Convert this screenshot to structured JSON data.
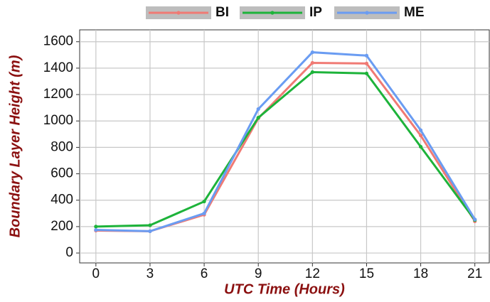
{
  "chart_data": {
    "type": "line",
    "x_label": "UTC Time (Hours)",
    "y_label": "Boundary Layer Height (m)",
    "x": [
      0,
      3,
      6,
      9,
      12,
      15,
      18,
      21
    ],
    "series": [
      {
        "name": "BI",
        "color": "#f07a74",
        "values": [
          170,
          165,
          290,
          1020,
          1440,
          1435,
          890,
          240
        ]
      },
      {
        "name": "IP",
        "color": "#1db33a",
        "values": [
          200,
          210,
          390,
          1025,
          1370,
          1360,
          805,
          250
        ]
      },
      {
        "name": "ME",
        "color": "#6a9cf2",
        "values": [
          175,
          165,
          300,
          1090,
          1520,
          1495,
          930,
          255
        ]
      }
    ],
    "xlim": [
      -0.9,
      21.8
    ],
    "xticks": [
      0,
      3,
      6,
      9,
      12,
      15,
      18,
      21
    ],
    "ylim": [
      -75,
      1690
    ],
    "yticks": [
      0,
      200,
      400,
      600,
      800,
      1000,
      1200,
      1400,
      1600
    ],
    "grid": true,
    "legend_position": "top"
  }
}
